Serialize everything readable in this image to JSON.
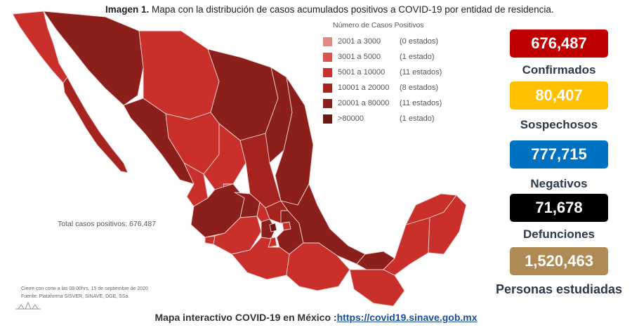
{
  "title": {
    "bold": "Imagen 1.",
    "text": "Mapa con la distribución de casos acumulados positivos a COVID-19 por entidad de residencia."
  },
  "legend": {
    "title": "Número de Casos Positivos",
    "ranges": [
      {
        "label": "2001 a    3000",
        "count": "(0 estados)",
        "color": "#e08a86"
      },
      {
        "label": "3001 a    5000",
        "count": "(1 estado)",
        "color": "#d9534f"
      },
      {
        "label": "5001 a  10000",
        "count": "(11 estados)",
        "color": "#c9302c"
      },
      {
        "label": "10001 a  20000",
        "count": "(8 estados)",
        "color": "#a62420"
      },
      {
        "label": "20001 a  80000",
        "count": "(11 estados)",
        "color": "#8a1f1c"
      },
      {
        "label": ">80000",
        "count": "(1 estado)",
        "color": "#6b1714"
      }
    ]
  },
  "map": {
    "total_label": "Total casos positivos: 676,487",
    "cutoff": "Cierre con corte a las 09:00hrs, 15 de septiembre de 2020",
    "source": "Fuente: Plataforma SISVER, SINAVE, DGE, SSa."
  },
  "stats": [
    {
      "value": "676,487",
      "label": "Confirmados",
      "color": "#c00000"
    },
    {
      "value": "80,407",
      "label": "Sospechosos",
      "color": "#ffc000"
    },
    {
      "value": "777,715",
      "label": "Negativos",
      "color": "#0070c0"
    },
    {
      "value": "71,678",
      "label": "Defunciones",
      "color": "#000000"
    },
    {
      "value": "1,520,463",
      "label": "Personas estudiadas",
      "color": "#b08a55"
    }
  ],
  "footer": {
    "text": "Mapa interactivo COVID-19 en México :",
    "link": "https://covid19.sinave.gob.mx"
  }
}
